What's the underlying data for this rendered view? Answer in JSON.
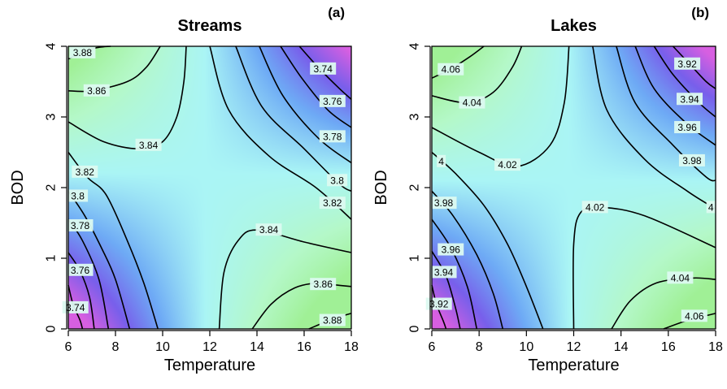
{
  "chart_data": [
    {
      "type": "contour",
      "title": "Streams",
      "panel_tag": "(a)",
      "xlabel": "Temperature",
      "ylabel": "BOD",
      "xlim": [
        6,
        18
      ],
      "ylim": [
        0,
        4
      ],
      "x_ticks": [
        "6",
        "8",
        "10",
        "12",
        "14",
        "16",
        "18"
      ],
      "y_ticks": [
        "0",
        "1",
        "2",
        "3",
        "4"
      ],
      "saddle": {
        "x": 11.8,
        "y": 2.2
      },
      "z_range": [
        3.72,
        3.9
      ],
      "levels": [
        {
          "value": "3.88",
          "points": [
            [
              6.0,
              3.82
            ],
            [
              6.5,
              3.9
            ],
            [
              7.2,
              3.98
            ],
            [
              7.8,
              4.0
            ]
          ],
          "label_at": [
            6.6,
            3.91
          ]
        },
        {
          "value": "3.86",
          "points": [
            [
              6.0,
              3.37
            ],
            [
              7.0,
              3.37
            ],
            [
              8.5,
              3.5
            ],
            [
              9.3,
              3.7
            ],
            [
              9.9,
              4.0
            ]
          ],
          "label_at": [
            7.2,
            3.37
          ]
        },
        {
          "value": "3.84",
          "points": [
            [
              6.0,
              2.93
            ],
            [
              7.5,
              2.65
            ],
            [
              9.0,
              2.55
            ],
            [
              10.0,
              2.65
            ],
            [
              10.6,
              3.0
            ],
            [
              10.9,
              3.5
            ],
            [
              11.0,
              4.0
            ]
          ],
          "label_at": [
            9.4,
            2.6
          ]
        },
        {
          "value": "3.82",
          "points": [
            [
              6.0,
              2.5
            ],
            [
              6.8,
              2.15
            ],
            [
              7.6,
              1.9
            ],
            [
              8.5,
              1.25
            ],
            [
              9.2,
              0.65
            ],
            [
              9.8,
              0.0
            ]
          ],
          "label_at": [
            6.7,
            2.22
          ]
        },
        {
          "value": "3.8",
          "points": [
            [
              6.0,
              1.95
            ],
            [
              6.7,
              1.6
            ],
            [
              7.4,
              1.15
            ],
            [
              8.0,
              0.7
            ],
            [
              8.6,
              0.0
            ]
          ],
          "label_at": [
            6.4,
            1.88
          ]
        },
        {
          "value": "3.78",
          "points": [
            [
              6.0,
              1.55
            ],
            [
              6.6,
              1.25
            ],
            [
              7.3,
              0.7
            ],
            [
              7.7,
              0.0
            ]
          ],
          "label_at": [
            6.5,
            1.46
          ]
        },
        {
          "value": "3.76",
          "points": [
            [
              6.0,
              1.08
            ],
            [
              6.5,
              0.82
            ],
            [
              6.9,
              0.45
            ],
            [
              7.1,
              0.0
            ]
          ],
          "label_at": [
            6.5,
            0.83
          ]
        },
        {
          "value": "3.74",
          "points": [
            [
              6.0,
              0.62
            ],
            [
              6.2,
              0.35
            ],
            [
              6.5,
              0.12
            ],
            [
              6.6,
              0.0
            ]
          ],
          "label_at": [
            6.3,
            0.3
          ]
        },
        {
          "value": "3.84",
          "points": [
            [
              12.4,
              0.0
            ],
            [
              12.6,
              0.8
            ],
            [
              13.2,
              1.25
            ],
            [
              14.0,
              1.4
            ],
            [
              16.0,
              1.23
            ],
            [
              18.0,
              1.08
            ]
          ],
          "label_at": [
            14.5,
            1.4
          ]
        },
        {
          "value": "3.86",
          "points": [
            [
              13.8,
              0.0
            ],
            [
              14.6,
              0.35
            ],
            [
              15.6,
              0.58
            ],
            [
              16.6,
              0.65
            ],
            [
              17.4,
              0.62
            ],
            [
              18.0,
              0.6
            ]
          ],
          "label_at": [
            16.8,
            0.63
          ]
        },
        {
          "value": "3.88",
          "points": [
            [
              16.2,
              0.0
            ],
            [
              17.3,
              0.15
            ],
            [
              18.0,
              0.22
            ]
          ],
          "label_at": [
            17.2,
            0.12
          ]
        },
        {
          "value": "3.82",
          "points": [
            [
              12.0,
              4.0
            ],
            [
              12.8,
              3.1
            ],
            [
              14.5,
              2.45
            ],
            [
              16.5,
              2.0
            ],
            [
              18.0,
              1.55
            ]
          ],
          "label_at": [
            17.2,
            1.78
          ]
        },
        {
          "value": "3.8",
          "points": [
            [
              13.1,
              4.0
            ],
            [
              14.2,
              3.15
            ],
            [
              16.0,
              2.55
            ],
            [
              17.5,
              2.05
            ],
            [
              18.0,
              1.95
            ]
          ],
          "label_at": [
            17.4,
            2.1
          ]
        },
        {
          "value": "3.78",
          "points": [
            [
              14.1,
              4.0
            ],
            [
              15.1,
              3.3
            ],
            [
              16.6,
              2.7
            ],
            [
              18.0,
              2.35
            ]
          ],
          "label_at": [
            17.2,
            2.72
          ]
        },
        {
          "value": "3.76",
          "points": [
            [
              15.0,
              4.0
            ],
            [
              15.9,
              3.55
            ],
            [
              17.0,
              3.1
            ],
            [
              18.0,
              2.85
            ]
          ],
          "label_at": [
            17.2,
            3.22
          ]
        },
        {
          "value": "3.74",
          "points": [
            [
              15.8,
              4.0
            ],
            [
              16.6,
              3.7
            ],
            [
              17.5,
              3.4
            ],
            [
              18.0,
              3.25
            ]
          ],
          "label_at": [
            16.8,
            3.68
          ]
        }
      ]
    },
    {
      "type": "contour",
      "title": "Lakes",
      "panel_tag": "(b)",
      "xlabel": "Temperature",
      "ylabel": "BOD",
      "xlim": [
        6,
        18
      ],
      "ylim": [
        0,
        4
      ],
      "x_ticks": [
        "6",
        "8",
        "10",
        "12",
        "14",
        "16",
        "18"
      ],
      "y_ticks": [
        "0",
        "1",
        "2",
        "3",
        "4"
      ],
      "saddle": {
        "x": 11.8,
        "y": 2.1
      },
      "z_range": [
        3.9,
        4.08
      ],
      "levels": [
        {
          "value": "4.06",
          "points": [
            [
              6.0,
              3.55
            ],
            [
              6.8,
              3.68
            ],
            [
              7.6,
              3.85
            ],
            [
              8.2,
              4.0
            ]
          ],
          "label_at": [
            6.8,
            3.67
          ]
        },
        {
          "value": "4.04",
          "points": [
            [
              6.0,
              3.3
            ],
            [
              7.5,
              3.2
            ],
            [
              8.6,
              3.35
            ],
            [
              9.4,
              3.7
            ],
            [
              9.8,
              4.0
            ]
          ],
          "label_at": [
            7.7,
            3.2
          ]
        },
        {
          "value": "4.02",
          "points": [
            [
              6.0,
              2.85
            ],
            [
              8.0,
              2.5
            ],
            [
              9.6,
              2.3
            ],
            [
              11.0,
              2.6
            ],
            [
              11.6,
              3.2
            ],
            [
              11.8,
              4.0
            ]
          ],
          "label_at": [
            9.2,
            2.32
          ]
        },
        {
          "value": "4",
          "points": [
            [
              6.0,
              2.5
            ],
            [
              7.0,
              2.2
            ],
            [
              8.2,
              1.75
            ],
            [
              9.2,
              1.2
            ],
            [
              10.0,
              0.6
            ],
            [
              10.7,
              0.0
            ]
          ],
          "label_at": [
            6.4,
            2.37
          ]
        },
        {
          "value": "3.98",
          "points": [
            [
              6.0,
              1.95
            ],
            [
              6.9,
              1.6
            ],
            [
              7.9,
              1.05
            ],
            [
              8.6,
              0.5
            ],
            [
              9.0,
              0.0
            ]
          ],
          "label_at": [
            6.5,
            1.78
          ]
        },
        {
          "value": "3.96",
          "points": [
            [
              6.0,
              1.55
            ],
            [
              6.8,
              1.15
            ],
            [
              7.5,
              0.6
            ],
            [
              7.9,
              0.0
            ]
          ],
          "label_at": [
            6.8,
            1.12
          ]
        },
        {
          "value": "3.94",
          "points": [
            [
              6.0,
              1.1
            ],
            [
              6.6,
              0.75
            ],
            [
              7.0,
              0.3
            ],
            [
              7.2,
              0.0
            ]
          ],
          "label_at": [
            6.5,
            0.8
          ]
        },
        {
          "value": "3.92",
          "points": [
            [
              6.0,
              0.62
            ],
            [
              6.2,
              0.35
            ],
            [
              6.5,
              0.1
            ],
            [
              6.6,
              0.0
            ]
          ],
          "label_at": [
            6.3,
            0.35
          ]
        },
        {
          "value": "4.02",
          "points": [
            [
              12.0,
              0.0
            ],
            [
              12.0,
              1.2
            ],
            [
              12.3,
              1.65
            ],
            [
              13.2,
              1.72
            ],
            [
              15.0,
              1.6
            ],
            [
              18.0,
              1.15
            ]
          ],
          "label_at": [
            12.9,
            1.72
          ]
        },
        {
          "value": "4.04",
          "points": [
            [
              13.6,
              0.0
            ],
            [
              14.4,
              0.4
            ],
            [
              15.5,
              0.65
            ],
            [
              17.0,
              0.72
            ],
            [
              18.0,
              0.7
            ]
          ],
          "label_at": [
            16.5,
            0.72
          ]
        },
        {
          "value": "4.06",
          "points": [
            [
              15.8,
              0.0
            ],
            [
              16.8,
              0.12
            ],
            [
              18.0,
              0.22
            ]
          ],
          "label_at": [
            17.1,
            0.18
          ]
        },
        {
          "value": "4",
          "points": [
            [
              12.8,
              4.0
            ],
            [
              13.4,
              3.1
            ],
            [
              15.0,
              2.4
            ],
            [
              16.8,
              1.95
            ],
            [
              18.0,
              1.7
            ]
          ],
          "label_at": [
            17.8,
            1.72
          ]
        },
        {
          "value": "3.98",
          "points": [
            [
              13.8,
              4.0
            ],
            [
              14.6,
              3.2
            ],
            [
              16.2,
              2.6
            ],
            [
              17.6,
              2.15
            ],
            [
              18.0,
              2.1
            ]
          ],
          "label_at": [
            17.0,
            2.38
          ]
        },
        {
          "value": "3.96",
          "points": [
            [
              14.6,
              4.0
            ],
            [
              15.4,
              3.4
            ],
            [
              16.8,
              2.9
            ],
            [
              18.0,
              2.6
            ]
          ],
          "label_at": [
            16.8,
            2.85
          ]
        },
        {
          "value": "3.94",
          "points": [
            [
              15.4,
              4.0
            ],
            [
              16.2,
              3.6
            ],
            [
              17.3,
              3.2
            ],
            [
              18.0,
              3.0
            ]
          ],
          "label_at": [
            16.9,
            3.25
          ]
        },
        {
          "value": "3.92",
          "points": [
            [
              16.2,
              4.0
            ],
            [
              16.9,
              3.75
            ],
            [
              17.6,
              3.5
            ],
            [
              18.0,
              3.4
            ]
          ],
          "label_at": [
            16.8,
            3.75
          ]
        }
      ]
    }
  ]
}
